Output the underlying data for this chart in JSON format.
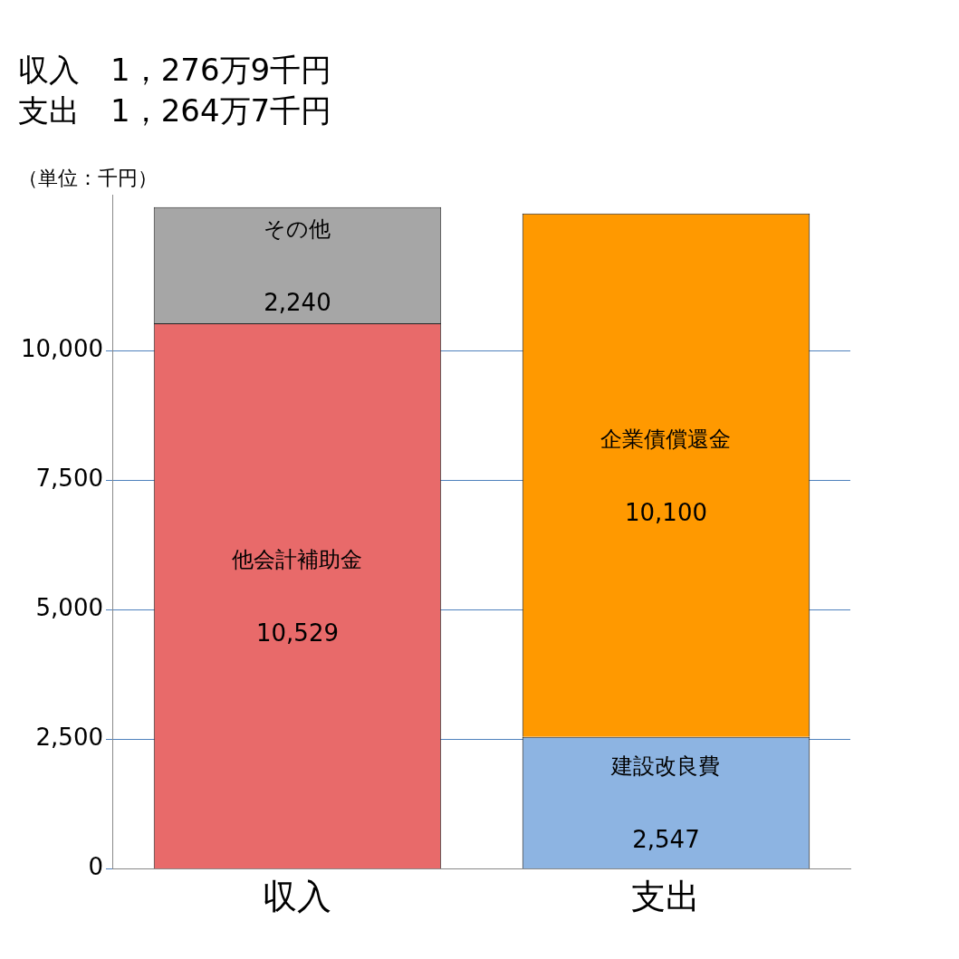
{
  "chart_data": {
    "type": "bar",
    "title": "収入　1，276万9千円",
    "subtitle": "支出　1，264万7千円",
    "ylabel": "（単位：千円）",
    "categories": [
      "収入",
      "支出"
    ],
    "stacked": true,
    "grid": "y",
    "legend": false,
    "ylim": [
      0,
      13000
    ],
    "yticks": [
      0,
      {
        "value": 2500,
        "label": "2,500"
      },
      {
        "value": 5000,
        "label": "5,000"
      },
      {
        "value": 7500,
        "label": "7,500"
      },
      {
        "value": 10000,
        "label": "10,000"
      }
    ],
    "series": [
      {
        "name": "他会計補助金",
        "color": "#e86a6a",
        "values": [
          10529,
          null
        ],
        "value_labels": [
          "10,529",
          null
        ]
      },
      {
        "name": "その他",
        "color": "#a6a6a6",
        "values": [
          2240,
          null
        ],
        "value_labels": [
          "2,240",
          null
        ]
      },
      {
        "name": "建設改良費",
        "color": "#8db4e2",
        "values": [
          null,
          2547
        ],
        "value_labels": [
          null,
          "2,547"
        ]
      },
      {
        "name": "企業債償還金",
        "color": "#ff9900",
        "values": [
          null,
          10100
        ],
        "value_labels": [
          null,
          "10,100"
        ]
      }
    ]
  }
}
